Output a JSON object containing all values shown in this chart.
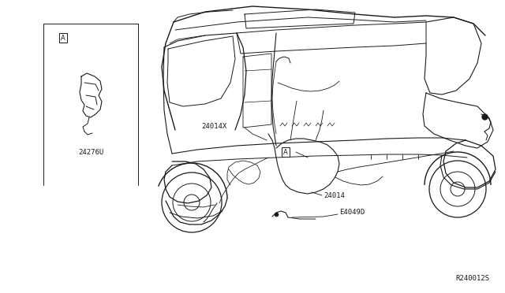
{
  "bg_color": "#ffffff",
  "line_color": "#1a1a1a",
  "fig_width": 6.4,
  "fig_height": 3.72,
  "dpi": 100,
  "label_font": "DejaVu Sans",
  "font_size": 6.5,
  "ref_text": "R240012S",
  "part_24276U": "24276U",
  "part_24014X": "24014X",
  "part_24014": "24014",
  "part_E4049D": "E4049D",
  "label_A": "A"
}
